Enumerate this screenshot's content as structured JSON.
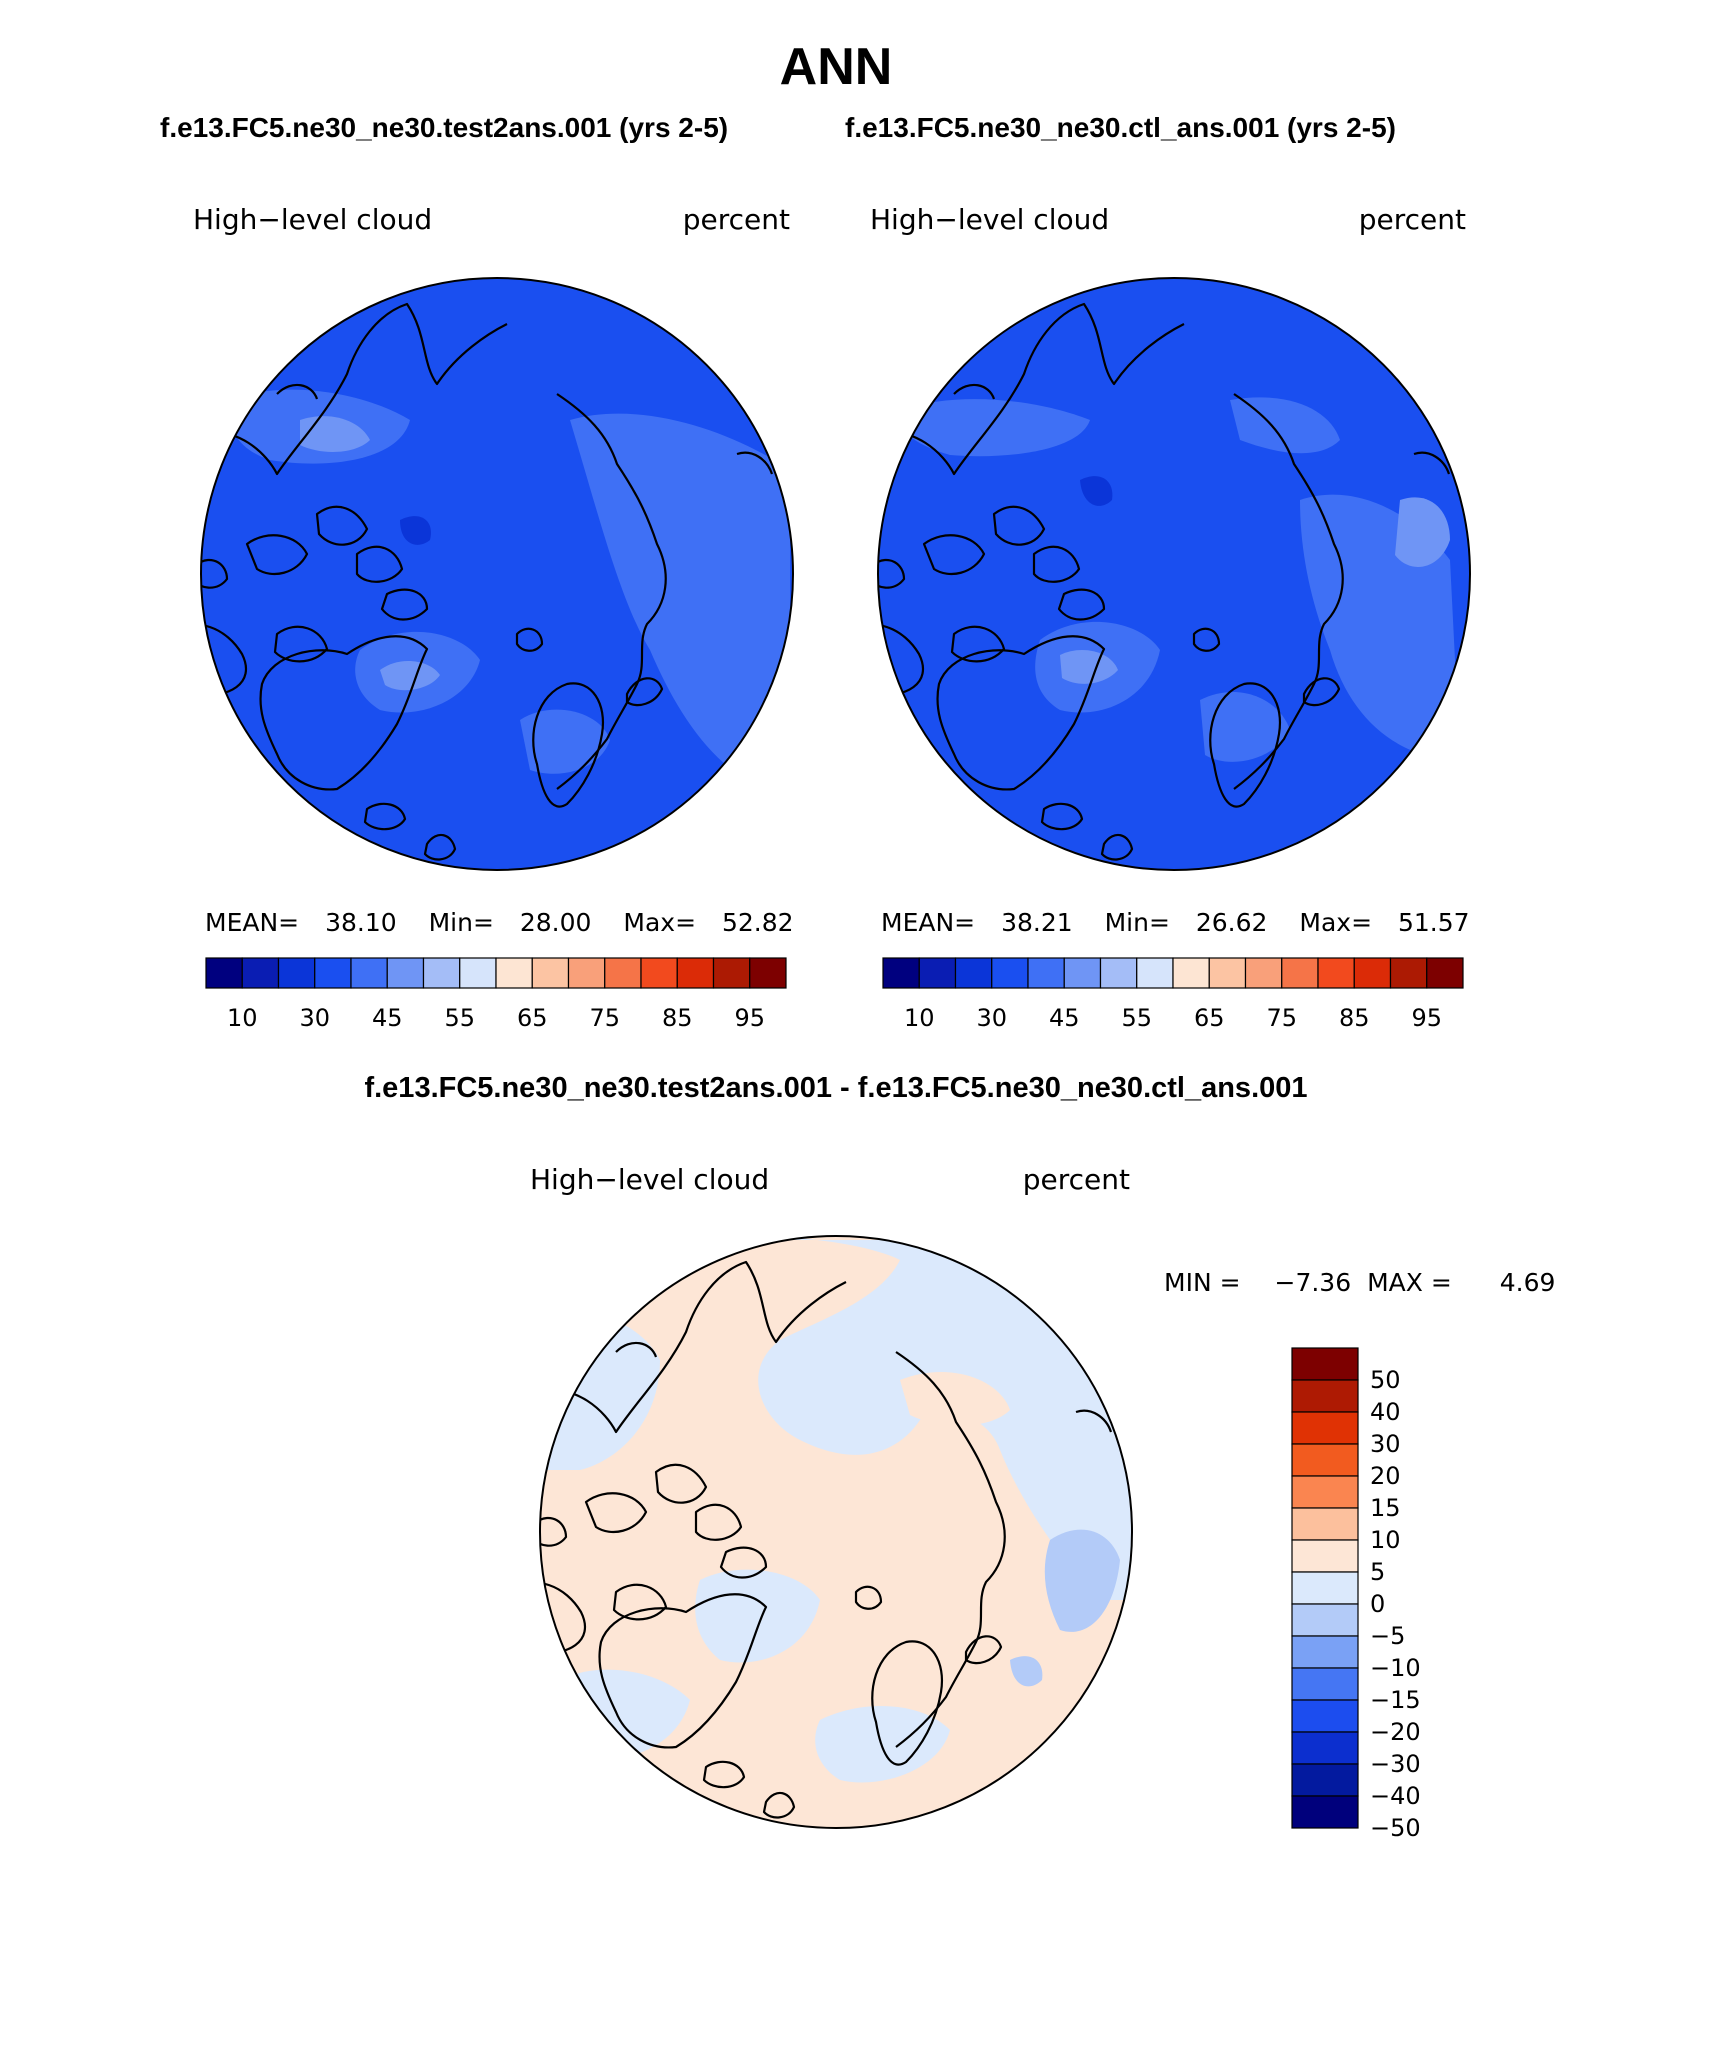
{
  "figure": {
    "title": "ANN",
    "subtitle_left": "f.e13.FC5.ne30_ne30.test2ans.001 (yrs 2-5)",
    "subtitle_right": "f.e13.FC5.ne30_ne30.ctl_ans.001 (yrs 2-5)",
    "diff_title": "f.e13.FC5.ne30_ne30.test2ans.001 - f.e13.FC5.ne30_ne30.ctl_ans.001"
  },
  "panels": {
    "test": {
      "variable": "High−level cloud",
      "units": "percent",
      "mean_label": "MEAN=",
      "mean": "38.10",
      "min_label": "Min=",
      "min": "28.00",
      "max_label": "Max=",
      "max": "52.82"
    },
    "ctl": {
      "variable": "High−level cloud",
      "units": "percent",
      "mean_label": "MEAN=",
      "mean": "38.21",
      "min_label": "Min=",
      "min": "26.62",
      "max_label": "Max=",
      "max": "51.57"
    },
    "diff": {
      "variable": "High−level cloud",
      "units": "percent",
      "min_label": "MIN =",
      "min": "−7.36",
      "max_label": "MAX =",
      "max": "4.69"
    }
  },
  "colorbars": {
    "main": {
      "colors": [
        "#00007f",
        "#0a1db3",
        "#0b35d8",
        "#1a4ff0",
        "#3f70f5",
        "#6f95f5",
        "#a4bdf7",
        "#d6e4fb",
        "#fde5d3",
        "#fcc4a3",
        "#f9a07a",
        "#f57448",
        "#f24a1e",
        "#db2b07",
        "#ac1a03",
        "#7d0000"
      ],
      "tick_labels": [
        "10",
        "30",
        "45",
        "55",
        "65",
        "75",
        "85",
        "95"
      ]
    },
    "diff": {
      "colors": [
        "#7d0000",
        "#ae1a03",
        "#e03204",
        "#f25b1f",
        "#fa8550",
        "#fcc09d",
        "#fde6d6",
        "#dbe9fc",
        "#b3cbf8",
        "#7aa1f5",
        "#4576f3",
        "#1c4def",
        "#0c2fcf",
        "#031a9f",
        "#00007c"
      ],
      "tick_labels": [
        "50",
        "40",
        "30",
        "20",
        "15",
        "10",
        "5",
        "0",
        "−5",
        "−10",
        "−15",
        "−20",
        "−30",
        "−40",
        "−50"
      ]
    }
  },
  "map_colors": {
    "base_30_45": "#1a4ff0",
    "band_45_55": "#3f70f5",
    "band_55_65": "#6f95f5",
    "band_65_75": "#a4bdf7",
    "dark_10_30": "#0b35d8",
    "diff_pos_0_5": "#fde6d6",
    "diff_neg_0_5": "#dbe9fc",
    "diff_neg_5_10": "#b3cbf8"
  }
}
